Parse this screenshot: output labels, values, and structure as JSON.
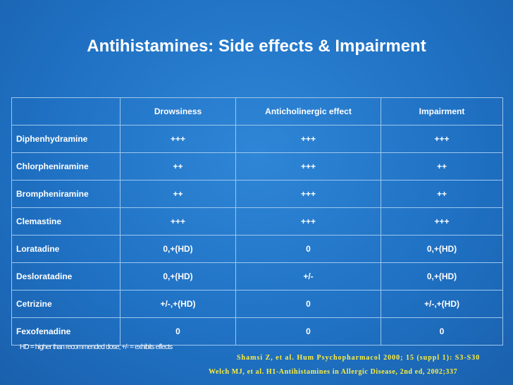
{
  "header": {
    "title": "Antihistamines: Side effects & Impairment"
  },
  "table": {
    "columns": [
      "Drowsiness",
      "Anticholinergic effect",
      "Impairment"
    ],
    "rows": [
      [
        "Diphenhydramine",
        "+++",
        "+++",
        "+++"
      ],
      [
        "Chlorpheniramine",
        "++",
        "+++",
        "++"
      ],
      [
        "Brompheniramine",
        "++",
        "+++",
        "++"
      ],
      [
        "Clemastine",
        "+++",
        "+++",
        "+++"
      ],
      [
        "Loratadine",
        "0,+(HD)",
        "0",
        "0,+(HD)"
      ],
      [
        "Desloratadine",
        "0,+(HD)",
        "+/-",
        "0,+(HD)"
      ],
      [
        "Cetrizine",
        "+/-,+(HD)",
        "0",
        "+/-,+(HD)"
      ],
      [
        "Fexofenadine",
        "0",
        "0",
        "0"
      ]
    ]
  },
  "footnote": "HD = higher than recommended dose; +/- = exhibits effects",
  "citations": [
    "Shamsi Z, et al. Hum Psychopharmacol 2000; 15 (suppl 1): S3-S30",
    "Welch MJ, et al. H1-Antihistamines in Allergic Disease, 2nd ed, 2002;337"
  ]
}
